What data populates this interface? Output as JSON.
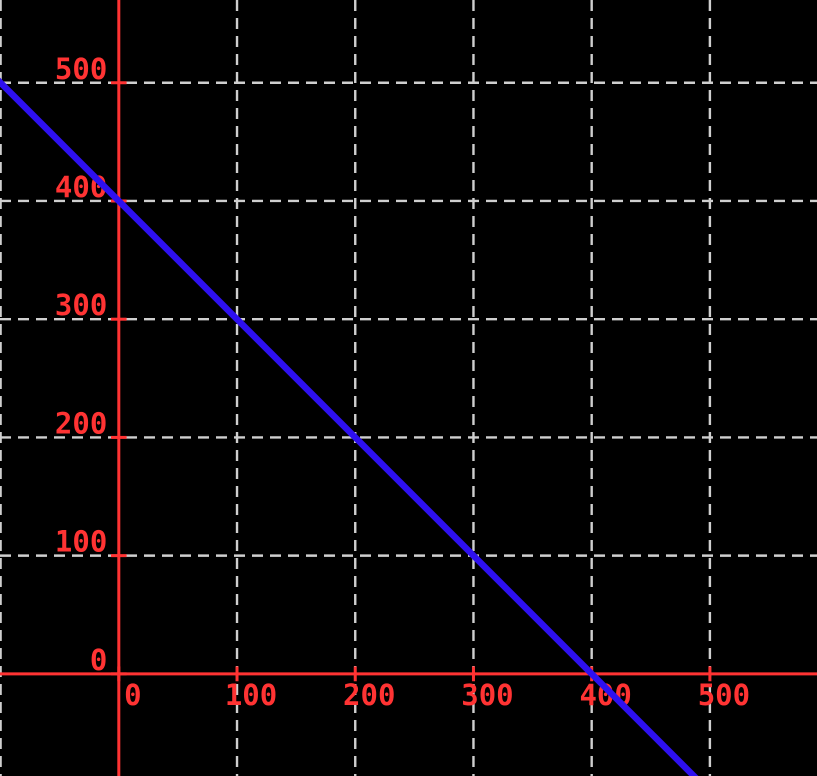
{
  "chart_data": {
    "type": "line",
    "title": "",
    "background": "#000000",
    "axes": {
      "color": "#ff3333",
      "axis_line_width": 3,
      "x_range": [
        -100.5,
        590.6
      ],
      "y_range": [
        -86.4,
        570.0
      ],
      "x_ticks": [
        0,
        100,
        200,
        300,
        400,
        500
      ],
      "y_ticks": [
        0,
        100,
        200,
        300,
        400,
        500
      ],
      "x_tick_labels": [
        "0",
        "100",
        "200",
        "300",
        "400",
        "500"
      ],
      "y_tick_labels": [
        "0",
        "100",
        "200",
        "300",
        "400",
        "500"
      ],
      "x_grid": [
        -100,
        0,
        100,
        200,
        300,
        400,
        500
      ],
      "y_grid": [
        0,
        100,
        200,
        300,
        400,
        500
      ],
      "tick_label_color": "#ff3333",
      "tick_color": "#ff3333",
      "grid": {
        "on": true,
        "color": "#cfcfcf",
        "dash": [
          11,
          7
        ],
        "width": 2.4
      }
    },
    "series": [
      {
        "name": "blue-line",
        "color": "#2e10f0",
        "width": 6.5,
        "equation": "y = 400 - x",
        "points": [
          [
            -110,
            510
          ],
          [
            510,
            -110
          ]
        ],
        "visible_intercepts": {
          "y_intercept": [
            0,
            400
          ],
          "x_intercept": [
            400,
            0
          ]
        }
      }
    ],
    "legend": {
      "visible": false
    }
  }
}
